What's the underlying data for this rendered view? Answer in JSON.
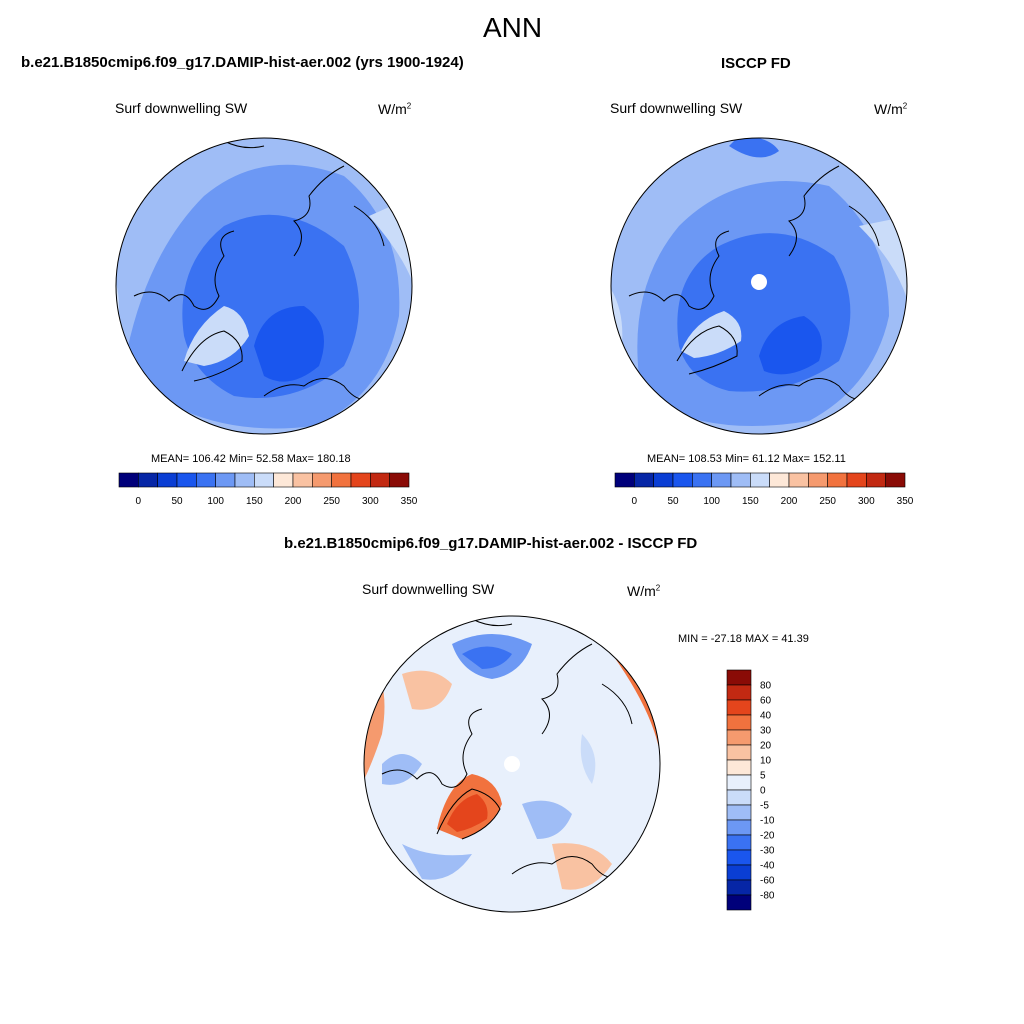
{
  "page_title": "ANN",
  "colors": {
    "palette": [
      "#00007a",
      "#0626a6",
      "#0a3ed4",
      "#1a56ee",
      "#3a72f2",
      "#6c98f4",
      "#9fbdf6",
      "#cadcf9",
      "#fde8d8",
      "#f9c2a2",
      "#f59a6e",
      "#f1723e",
      "#e4451c",
      "#c22912",
      "#8a0b06"
    ],
    "diff_palette": [
      "#00007a",
      "#0626a6",
      "#0a3ed4",
      "#1a56ee",
      "#3a72f2",
      "#6c98f4",
      "#9fbdf6",
      "#cadcf9",
      "#e8f0fc",
      "#fde8d8",
      "#f9c2a2",
      "#f59a6e",
      "#f1723e",
      "#e4451c",
      "#c22912",
      "#8a0b06"
    ]
  },
  "panels": {
    "model": {
      "title": "b.e21.B1850cmip6.f09_g17.DAMIP-hist-aer.002 (yrs 1900-1924)",
      "variable": "Surf downwelling SW",
      "units_base": "W/m",
      "units_exp": "2",
      "stats": "MEAN= 106.42  Min=  52.58  Max= 180.18",
      "colorbar_labels": [
        "0",
        "50",
        "100",
        "150",
        "200",
        "250",
        "300",
        "350"
      ]
    },
    "obs": {
      "title": "ISCCP FD",
      "variable": "Surf downwelling SW",
      "units_base": "W/m",
      "units_exp": "2",
      "stats": "MEAN= 108.53  Min=  61.12  Max= 152.11",
      "colorbar_labels": [
        "0",
        "50",
        "100",
        "150",
        "200",
        "250",
        "300",
        "350"
      ]
    },
    "diff": {
      "title": "b.e21.B1850cmip6.f09_g17.DAMIP-hist-aer.002 - ISCCP FD",
      "variable": "Surf downwelling SW",
      "units_base": "W/m",
      "units_exp": "2",
      "stats": "MIN = -27.18 MAX =  41.39",
      "colorbar_labels": [
        "80",
        "60",
        "40",
        "30",
        "20",
        "10",
        "5",
        "0",
        "-5",
        "-10",
        "-20",
        "-30",
        "-40",
        "-60",
        "-80"
      ]
    }
  }
}
